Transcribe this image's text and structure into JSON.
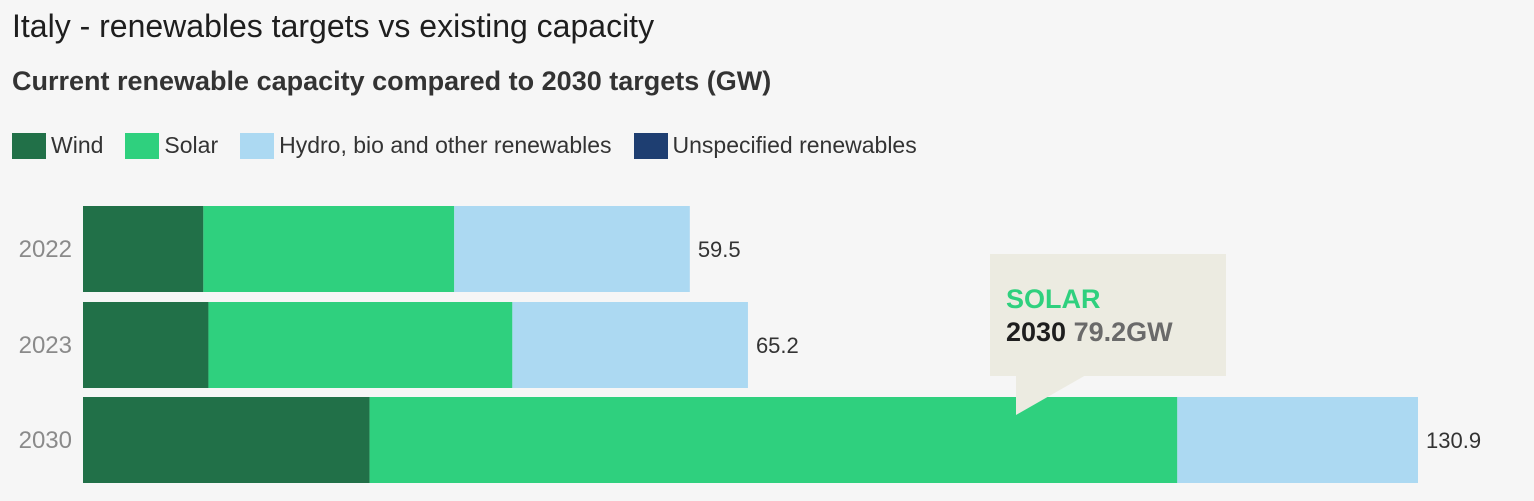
{
  "chart_data": {
    "type": "bar",
    "orientation": "horizontal",
    "stacked": true,
    "title": "Italy - renewables targets vs existing capacity",
    "subtitle": "Current renewable capacity compared to 2030 targets (GW)",
    "xlim": [
      0,
      130.9
    ],
    "categories": [
      "2022",
      "2023",
      "2030"
    ],
    "series": [
      {
        "name": "Wind",
        "color": "#217048",
        "values": [
          11.8,
          12.3,
          28.1
        ]
      },
      {
        "name": "Solar",
        "color": "#2fd07e",
        "values": [
          24.6,
          29.8,
          79.2
        ]
      },
      {
        "name": "Hydro, bio and other renewables",
        "color": "#acd9f2",
        "values": [
          23.1,
          23.1,
          23.6
        ]
      },
      {
        "name": "Unspecified renewables",
        "color": "#1e3e71",
        "values": [
          0,
          0,
          0
        ]
      }
    ],
    "totals": [
      "59.5",
      "65.2",
      "130.9"
    ],
    "legend_position": "top-left",
    "grid": false
  },
  "tooltip": {
    "series": "SOLAR",
    "year": "2030",
    "value": "79.2GW"
  }
}
